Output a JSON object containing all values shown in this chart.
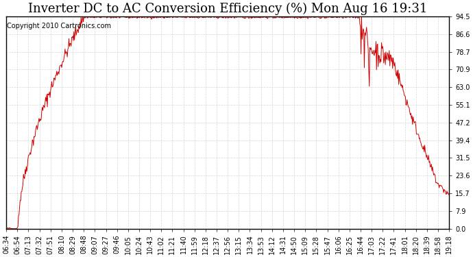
{
  "title": "Inverter DC to AC Conversion Efficiency (%) Mon Aug 16 19:31",
  "copyright_text": "Copyright 2010 Cartronics.com",
  "line_color": "#cc0000",
  "background_color": "#ffffff",
  "plot_bg_color": "#ffffff",
  "grid_color": "#cccccc",
  "yticks": [
    0.0,
    7.9,
    15.7,
    23.6,
    31.5,
    39.4,
    47.2,
    55.1,
    63.0,
    70.9,
    78.7,
    86.6,
    94.5
  ],
  "xtick_labels": [
    "06:34",
    "06:54",
    "07:13",
    "07:32",
    "07:51",
    "08:10",
    "08:29",
    "08:48",
    "09:07",
    "09:27",
    "09:46",
    "10:05",
    "10:24",
    "10:43",
    "11:02",
    "11:21",
    "11:40",
    "11:59",
    "12:18",
    "12:37",
    "12:56",
    "13:15",
    "13:34",
    "13:53",
    "14:12",
    "14:31",
    "14:50",
    "15:09",
    "15:28",
    "15:47",
    "16:06",
    "16:25",
    "16:44",
    "17:03",
    "17:22",
    "17:41",
    "18:01",
    "18:20",
    "18:39",
    "18:58",
    "19:18"
  ],
  "ylim": [
    0.0,
    94.5
  ],
  "title_fontsize": 13,
  "tick_fontsize": 7,
  "copyright_fontsize": 7
}
